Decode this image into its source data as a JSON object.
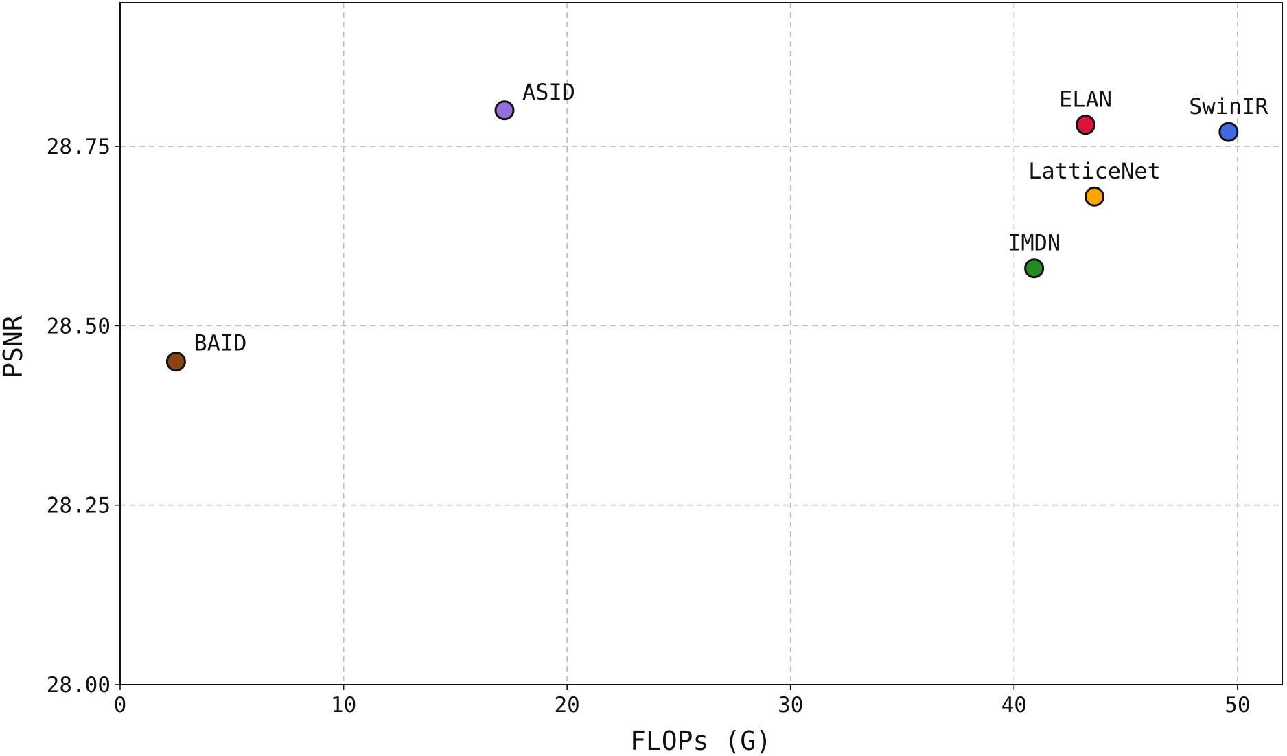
{
  "chart_data": {
    "type": "scatter",
    "title": "",
    "xlabel": "FLOPs (G)",
    "ylabel": "PSNR",
    "xlim": [
      0,
      52
    ],
    "ylim": [
      28.0,
      28.95
    ],
    "x_ticks": [
      0,
      10,
      20,
      30,
      40,
      50
    ],
    "x_tick_labels": [
      "0",
      "10",
      "20",
      "30",
      "40",
      "50"
    ],
    "y_ticks": [
      28.0,
      28.25,
      28.5,
      28.75
    ],
    "y_tick_labels": [
      "28.00",
      "28.25",
      "28.50",
      "28.75"
    ],
    "grid": true,
    "points": [
      {
        "label": "BAID",
        "x": 2.5,
        "y": 28.45,
        "color": "#8b4513"
      },
      {
        "label": "ASID",
        "x": 17.2,
        "y": 28.8,
        "color": "#9370db"
      },
      {
        "label": "ELAN",
        "x": 43.2,
        "y": 28.78,
        "color": "#dc143c"
      },
      {
        "label": "SwinIR",
        "x": 49.6,
        "y": 28.77,
        "color": "#4169e1"
      },
      {
        "label": "LatticeNet",
        "x": 43.6,
        "y": 28.68,
        "color": "#ffa500"
      },
      {
        "label": "IMDN",
        "x": 40.9,
        "y": 28.58,
        "color": "#228b22"
      }
    ]
  }
}
